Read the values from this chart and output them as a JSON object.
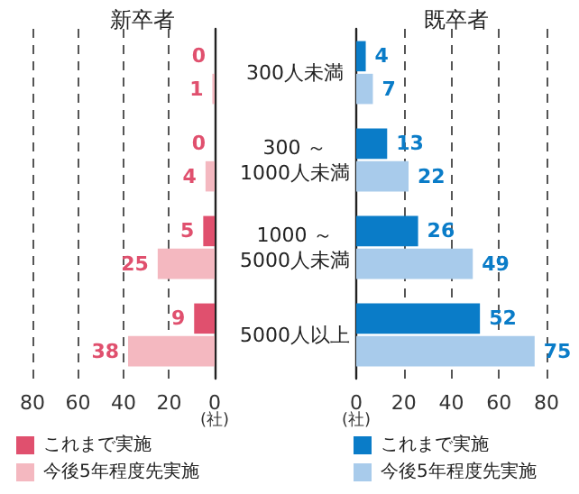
{
  "chart_data": [
    {
      "type": "bar",
      "orientation": "horizontal",
      "title": "新卒者",
      "xlabel": "(社)",
      "categories": [
        null,
        null,
        null,
        null
      ],
      "series": [
        {
          "name": "これまで実施",
          "color": "#e0506e",
          "values": [
            0,
            0,
            5,
            9
          ]
        },
        {
          "name": "今後5年程度先実施",
          "color": "#f4b8c0",
          "values": [
            1,
            4,
            25,
            38
          ]
        }
      ],
      "xlim": [
        80,
        0
      ],
      "xticks": [
        80,
        60,
        40,
        20,
        0
      ],
      "grid": "x",
      "legend": "bottom",
      "data_labels": true,
      "tick_labels": "x"
    },
    {
      "type": "bar",
      "orientation": "horizontal",
      "title": "既卒者",
      "xlabel": "(社)",
      "categories": [
        "300人未満",
        "300 ～\n1000人未満",
        "1000 ～\n5000人未満",
        "5000人以上"
      ],
      "series": [
        {
          "name": "これまで実施",
          "color": "#0a7cc8",
          "values": [
            4,
            13,
            26,
            52
          ]
        },
        {
          "name": "今後5年程度先実施",
          "color": "#a8cbeb",
          "values": [
            7,
            22,
            49,
            75
          ]
        }
      ],
      "xlim": [
        0,
        80
      ],
      "xticks": [
        0,
        20,
        40,
        60,
        80
      ],
      "grid": "x",
      "legend": "bottom",
      "data_labels": true
    }
  ]
}
